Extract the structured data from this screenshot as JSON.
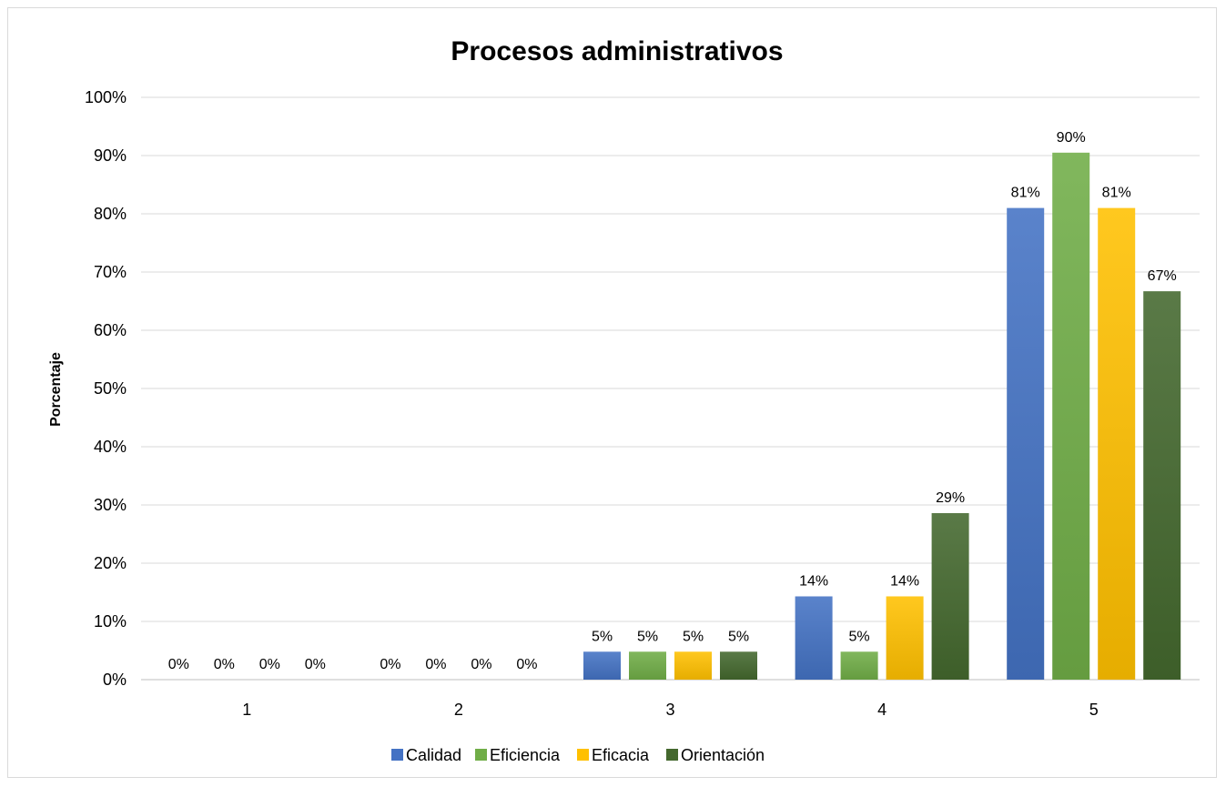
{
  "chart_data": {
    "type": "bar",
    "title": "Procesos administrativos",
    "ylabel": "Porcentaje",
    "xlabel": "",
    "categories": [
      "1",
      "2",
      "3",
      "4",
      "5"
    ],
    "ylim": [
      0,
      100
    ],
    "yticks": [
      "0%",
      "10%",
      "20%",
      "30%",
      "40%",
      "50%",
      "60%",
      "70%",
      "80%",
      "90%",
      "100%"
    ],
    "grid": true,
    "legend_position": "bottom",
    "series": [
      {
        "name": "Calidad",
        "color": "#4472c4",
        "values": [
          0,
          0,
          4.8,
          14.3,
          81
        ],
        "labels": [
          "0%",
          "0%",
          "5%",
          "14%",
          "81%"
        ]
      },
      {
        "name": "Eficiencia",
        "color": "#70ad47",
        "values": [
          0,
          0,
          4.8,
          4.8,
          90.5
        ],
        "labels": [
          "0%",
          "0%",
          "5%",
          "5%",
          "90%"
        ]
      },
      {
        "name": "Eficacia",
        "color": "#ffc000",
        "values": [
          0,
          0,
          4.8,
          14.3,
          81
        ],
        "labels": [
          "0%",
          "0%",
          "5%",
          "14%",
          "81%"
        ]
      },
      {
        "name": "Orientación",
        "color": "#44682e",
        "values": [
          0,
          0,
          4.8,
          28.6,
          66.7
        ],
        "labels": [
          "0%",
          "0%",
          "5%",
          "29%",
          "67%"
        ]
      }
    ]
  }
}
